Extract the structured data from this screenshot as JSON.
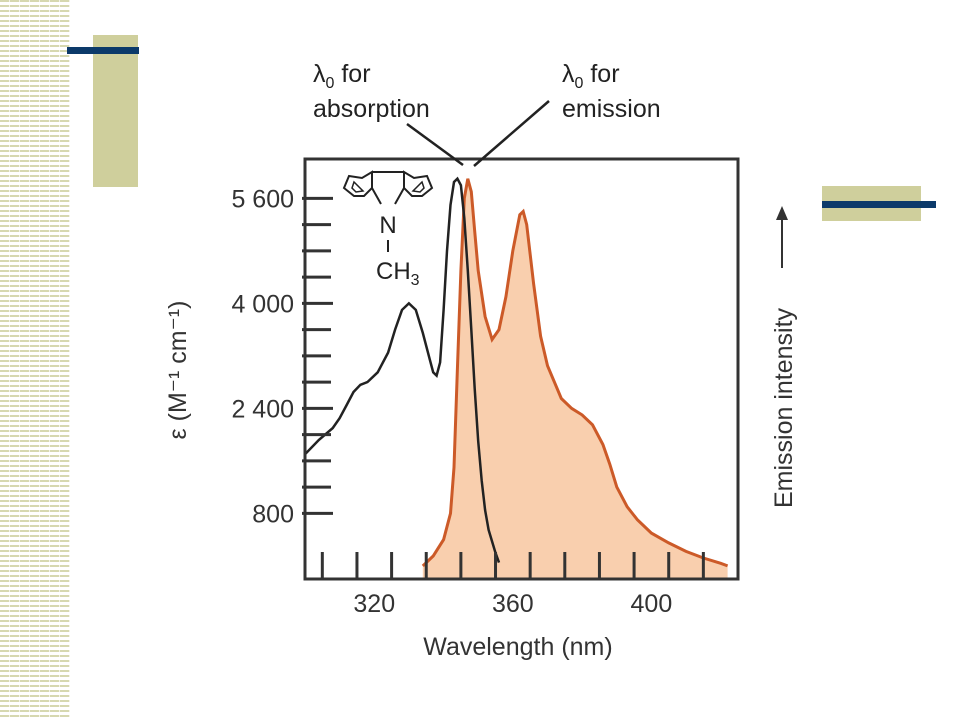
{
  "chart_data": {
    "type": "line",
    "xlabel": "Wavelength (nm)",
    "ylabel": "ε (M⁻¹ cm⁻¹)",
    "y2label": "Emission intensity",
    "xlim": [
      300,
      425
    ],
    "ylim": [
      -200,
      6200
    ],
    "x_ticks": [
      320,
      360,
      400
    ],
    "x_minor_tick_step": 5,
    "y_ticks": [
      800,
      2400,
      4000,
      5600
    ],
    "y_tick_labels": [
      "800",
      "2 400",
      "4 000",
      "5 600"
    ],
    "y_minor_tick_step": 400,
    "grid": false,
    "series": [
      {
        "role": "absorption",
        "color": "#222222",
        "points": [
          [
            300,
            1700
          ],
          [
            304,
            1920
          ],
          [
            308,
            2100
          ],
          [
            310,
            2250
          ],
          [
            312,
            2450
          ],
          [
            314,
            2650
          ],
          [
            316,
            2760
          ],
          [
            318,
            2800
          ],
          [
            321,
            2950
          ],
          [
            324,
            3250
          ],
          [
            326,
            3600
          ],
          [
            328,
            3900
          ],
          [
            330,
            4000
          ],
          [
            332,
            3900
          ],
          [
            334,
            3550
          ],
          [
            336,
            3150
          ],
          [
            337,
            2950
          ],
          [
            338,
            2900
          ],
          [
            339,
            3100
          ],
          [
            340,
            3900
          ],
          [
            341,
            4800
          ],
          [
            342,
            5500
          ],
          [
            343,
            5850
          ],
          [
            344,
            5900
          ],
          [
            345,
            5800
          ],
          [
            346,
            5300
          ],
          [
            347,
            4500
          ],
          [
            348,
            3600
          ],
          [
            349,
            2700
          ],
          [
            350,
            1900
          ],
          [
            351,
            1300
          ],
          [
            352,
            850
          ],
          [
            353,
            550
          ],
          [
            355,
            200
          ],
          [
            356,
            50
          ]
        ]
      },
      {
        "role": "emission",
        "color": "#cc5a28",
        "fill": "#f9cfae",
        "points": [
          [
            334,
            0
          ],
          [
            337,
            150
          ],
          [
            340,
            400
          ],
          [
            342,
            800
          ],
          [
            343,
            1500
          ],
          [
            344,
            3000
          ],
          [
            345,
            4500
          ],
          [
            346,
            5600
          ],
          [
            347,
            5900
          ],
          [
            348,
            5700
          ],
          [
            349,
            5100
          ],
          [
            350,
            4500
          ],
          [
            352,
            3800
          ],
          [
            354,
            3450
          ],
          [
            356,
            3600
          ],
          [
            358,
            4100
          ],
          [
            360,
            4800
          ],
          [
            362,
            5350
          ],
          [
            363,
            5400
          ],
          [
            364,
            5200
          ],
          [
            366,
            4300
          ],
          [
            368,
            3500
          ],
          [
            370,
            3050
          ],
          [
            372,
            2800
          ],
          [
            374,
            2550
          ],
          [
            377,
            2400
          ],
          [
            380,
            2300
          ],
          [
            383,
            2150
          ],
          [
            386,
            1850
          ],
          [
            388,
            1550
          ],
          [
            390,
            1200
          ],
          [
            393,
            900
          ],
          [
            396,
            700
          ],
          [
            400,
            500
          ],
          [
            405,
            350
          ],
          [
            410,
            220
          ],
          [
            415,
            120
          ],
          [
            420,
            40
          ],
          [
            422,
            0
          ]
        ]
      }
    ],
    "annotations": [
      {
        "line1": "λ",
        "sub": "0",
        "line1_rest": " for",
        "line2": "absorption"
      },
      {
        "line1": "λ",
        "sub": "0",
        "line1_rest": " for",
        "line2": "emission"
      }
    ],
    "molecule": {
      "atom": "N",
      "substituent": "CH",
      "substituent_sub": "3"
    }
  }
}
